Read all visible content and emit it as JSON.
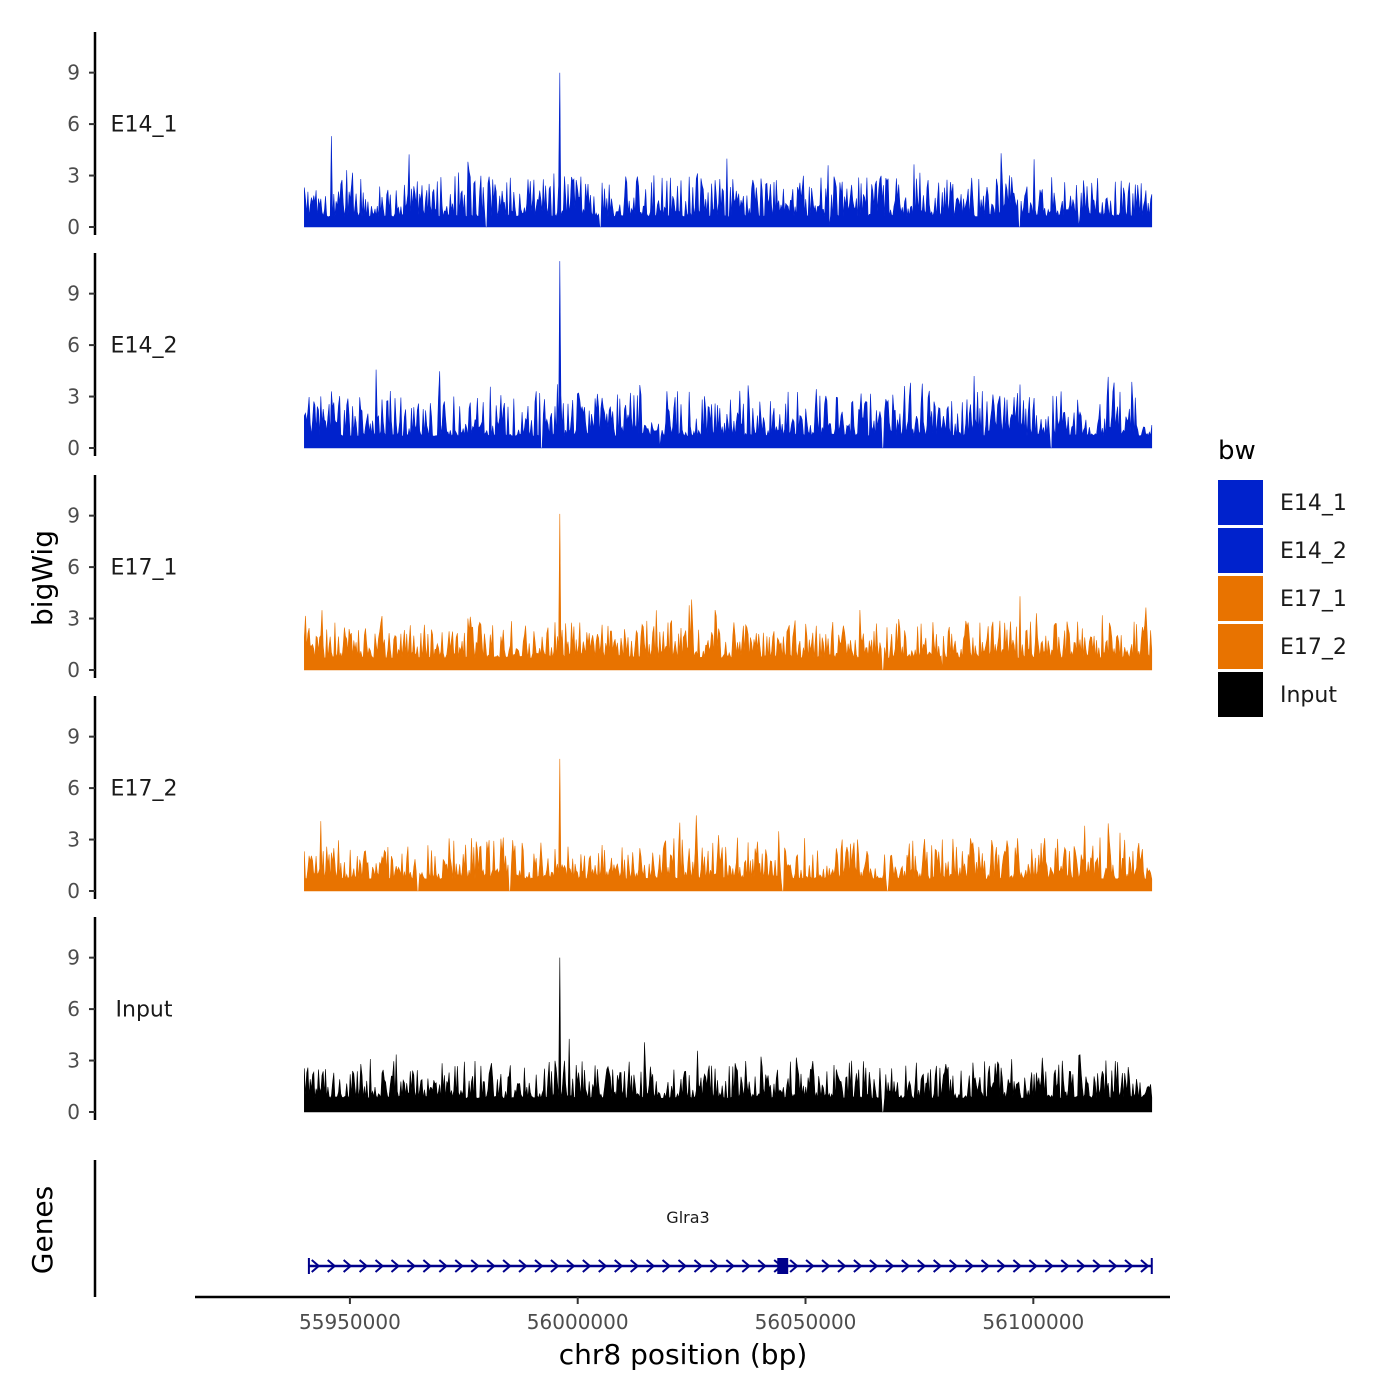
{
  "chart_data": {
    "type": "area",
    "chromosome": "chr8",
    "xlabel": "chr8 position (bp)",
    "ylabel": "bigWig",
    "genes_label": "Genes",
    "xlim": [
      55916000,
      56130000
    ],
    "data_range": [
      55940000,
      56126000
    ],
    "x_ticks": [
      55950000,
      56000000,
      56050000,
      56100000
    ],
    "x_tick_labels": [
      "55950000",
      "56000000",
      "56050000",
      "56100000"
    ],
    "ylim": [
      0,
      11.5
    ],
    "y_ticks": [
      0,
      3,
      6,
      9
    ],
    "y_tick_labels": [
      "0",
      "3",
      "6",
      "9"
    ],
    "legend": {
      "title": "bw",
      "entries": [
        {
          "label": "E14_1",
          "color": "#0022CC"
        },
        {
          "label": "E14_2",
          "color": "#0022CC"
        },
        {
          "label": "E17_1",
          "color": "#E87300"
        },
        {
          "label": "E17_2",
          "color": "#E87300"
        },
        {
          "label": "Input",
          "color": "#000000"
        }
      ]
    },
    "series": [
      {
        "name": "E14_1",
        "color": "#0022CC",
        "baseline": 0.6,
        "noise": 1.1,
        "peaks": [
          {
            "x": 55996000,
            "y": 9.0
          },
          {
            "x": 55946000,
            "y": 5.3
          },
          {
            "x": 55976000,
            "y": 3.8
          },
          {
            "x": 56093000,
            "y": 4.3
          },
          {
            "x": 56055000,
            "y": 3.6
          }
        ],
        "gaps": [
          55980000,
          56005000,
          56055000,
          56097000,
          56110000
        ]
      },
      {
        "name": "E14_2",
        "color": "#0022CC",
        "baseline": 0.7,
        "noise": 1.2,
        "peaks": [
          {
            "x": 55996000,
            "y": 10.9
          },
          {
            "x": 55946000,
            "y": 3.3
          },
          {
            "x": 56087000,
            "y": 4.2
          },
          {
            "x": 56097000,
            "y": 3.7
          },
          {
            "x": 56073000,
            "y": 3.8
          }
        ],
        "gaps": [
          55992000,
          56018000,
          56067000,
          56104000
        ]
      },
      {
        "name": "E17_1",
        "color": "#E87300",
        "baseline": 0.7,
        "noise": 1.0,
        "peaks": [
          {
            "x": 55996000,
            "y": 9.1
          },
          {
            "x": 56062000,
            "y": 3.5
          },
          {
            "x": 56097000,
            "y": 4.3
          },
          {
            "x": 55976000,
            "y": 3.0
          }
        ],
        "gaps": [
          56067000,
          56080000
        ]
      },
      {
        "name": "E17_2",
        "color": "#E87300",
        "baseline": 0.7,
        "noise": 1.1,
        "peaks": [
          {
            "x": 55996000,
            "y": 7.7
          },
          {
            "x": 56058000,
            "y": 3.0
          },
          {
            "x": 56119000,
            "y": 3.4
          },
          {
            "x": 56080000,
            "y": 3.0
          }
        ],
        "gaps": [
          55965000,
          55985000,
          56045000,
          56068000
        ]
      },
      {
        "name": "Input",
        "color": "#000000",
        "baseline": 0.8,
        "noise": 1.0,
        "peaks": [
          {
            "x": 55996000,
            "y": 9.0
          },
          {
            "x": 56110000,
            "y": 3.3
          },
          {
            "x": 56116000,
            "y": 3.0
          }
        ],
        "gaps": [
          56067000
        ]
      }
    ],
    "gene": {
      "name": "Glra3",
      "color": "#00008B",
      "start": 55941000,
      "end": 56126000,
      "strand": "+",
      "exon": [
        56043800,
        56046200
      ]
    }
  }
}
